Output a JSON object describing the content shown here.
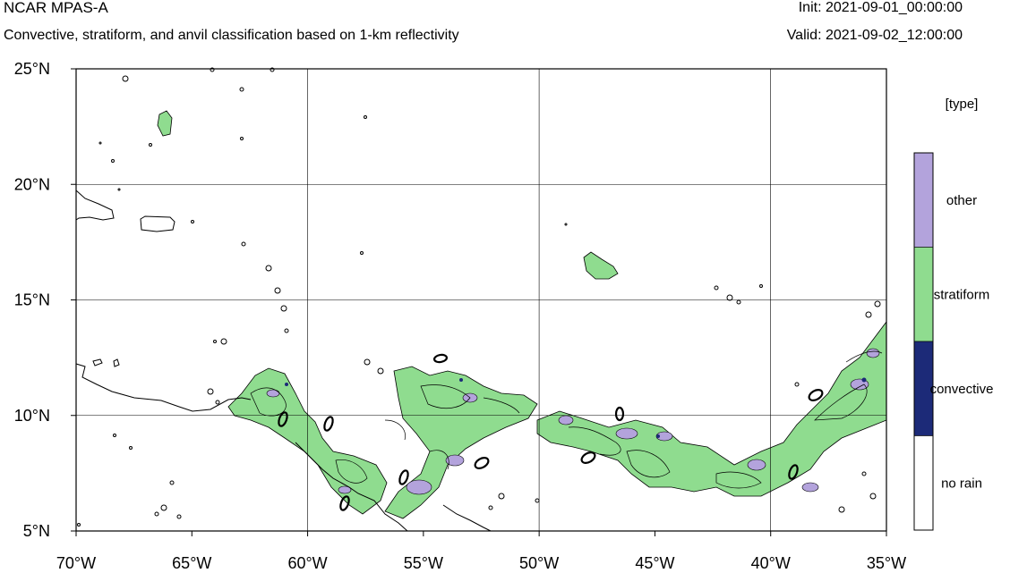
{
  "header": {
    "title": "NCAR MPAS-A",
    "subtitle": "Convective, stratiform, and anvil classification based on 1-km reflectivity",
    "init": "Init: 2021-09-01_00:00:00",
    "valid": "Valid: 2021-09-02_12:00:00"
  },
  "map": {
    "lon_range": [
      -70,
      -35
    ],
    "lat_range": [
      5,
      25
    ],
    "x_ticks": [
      "70°W",
      "65°W",
      "60°W",
      "55°W",
      "50°W",
      "45°W",
      "40°W",
      "35°W"
    ],
    "y_ticks": [
      "25°N",
      "20°N",
      "15°N",
      "10°N",
      "5°N"
    ],
    "gridlines": true
  },
  "legend": {
    "title": "[type]",
    "items": [
      {
        "label": "other",
        "color": "#b3a3dc"
      },
      {
        "label": "stratiform",
        "color": "#8fdc8f"
      },
      {
        "label": "convective",
        "color": "#1c2a78"
      },
      {
        "label": "no rain",
        "color": "#ffffff"
      }
    ]
  },
  "colors": {
    "stratiform": "#8fdc8f",
    "other": "#b3a3dc",
    "convective": "#1c2a78"
  }
}
